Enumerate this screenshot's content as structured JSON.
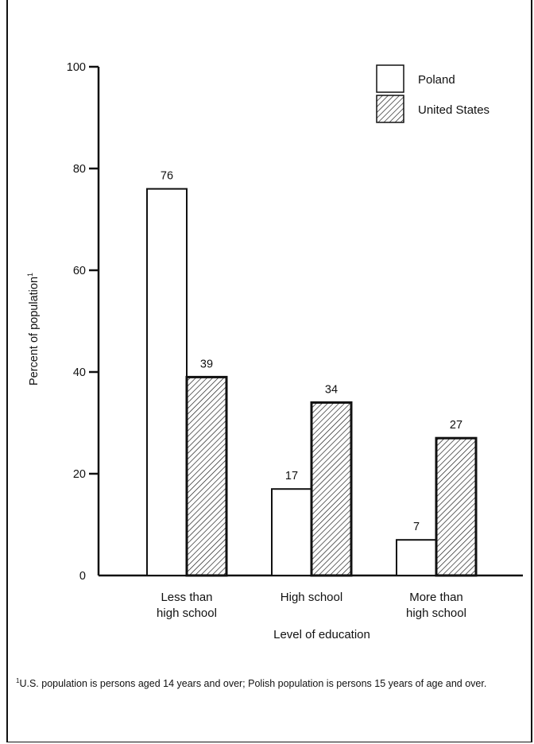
{
  "chart_data": {
    "type": "bar",
    "categories": [
      [
        "Less than",
        "high school"
      ],
      [
        "High school"
      ],
      [
        "More than",
        "high school"
      ]
    ],
    "series": [
      {
        "name": "Poland",
        "values": [
          76,
          17,
          7
        ],
        "pattern": "open"
      },
      {
        "name": "United States",
        "values": [
          39,
          34,
          27
        ],
        "pattern": "hatched"
      }
    ],
    "ylabel": "Percent of population",
    "ylabel_marker": "1",
    "xlabel": "Level of education",
    "ylim": [
      0,
      100
    ],
    "yticks": [
      0,
      20,
      40,
      60,
      80,
      100
    ],
    "legend_position": "top-right",
    "data_labels": true,
    "grid": false
  },
  "footnote": {
    "marker": "1",
    "text": "U.S. population is persons aged 14 years and over; Polish population is persons 15 years of age and over."
  },
  "colors": {
    "ink": "#111111",
    "background": "#ffffff"
  }
}
